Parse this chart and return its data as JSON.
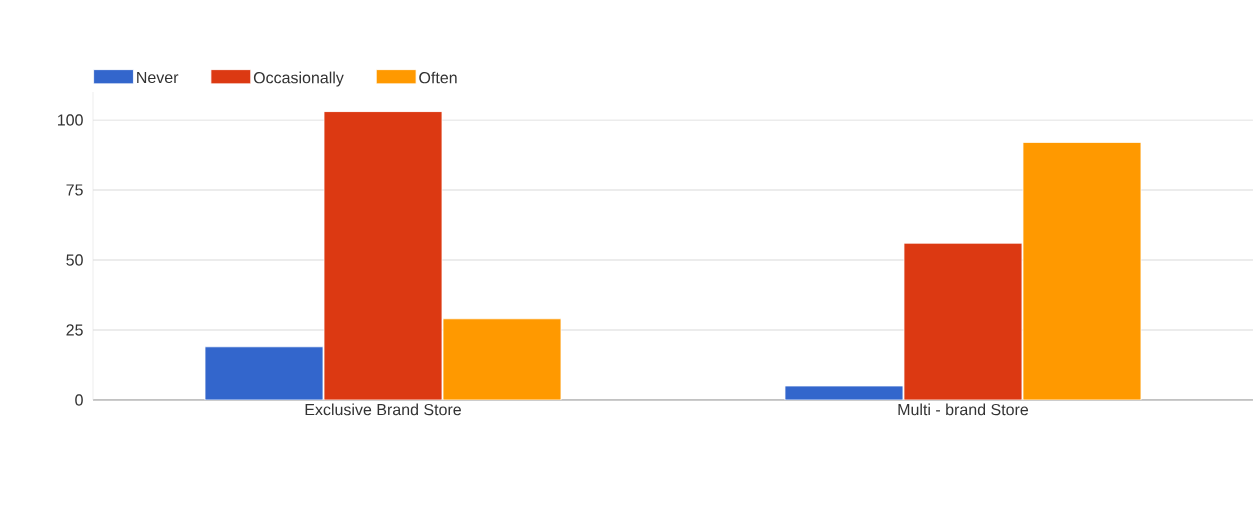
{
  "chart_data": {
    "type": "bar",
    "categories": [
      "Exclusive Brand Store",
      "Multi - brand Store"
    ],
    "series": [
      {
        "name": "Never",
        "color": "#3366cc",
        "values": [
          19,
          5
        ]
      },
      {
        "name": "Occasionally",
        "color": "#dc3912",
        "values": [
          103,
          56
        ]
      },
      {
        "name": "Often",
        "color": "#ff9900",
        "values": [
          29,
          92
        ]
      }
    ],
    "ylim": [
      0,
      110
    ],
    "yticks": [
      0,
      25,
      50,
      75,
      100
    ],
    "grid": "y",
    "legend": "top left"
  }
}
